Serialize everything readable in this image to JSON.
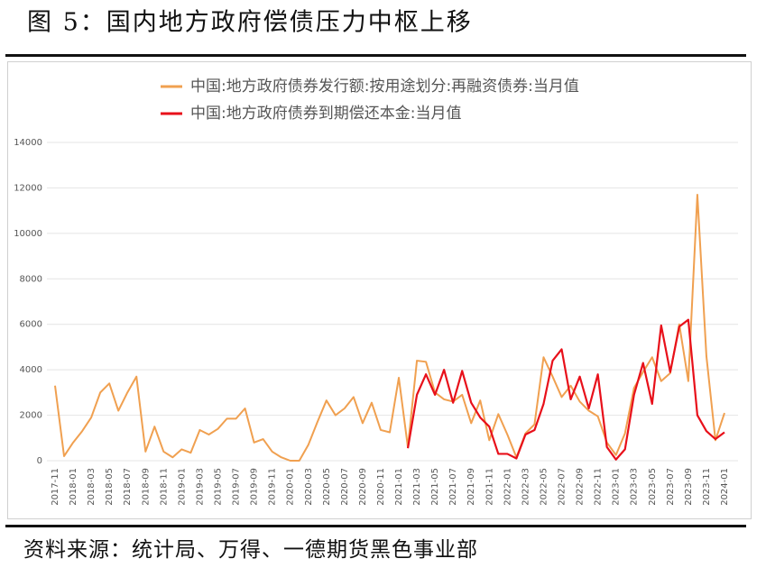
{
  "chart_data": {
    "type": "line",
    "title": "图 5：国内地方政府偿债压力中枢上移",
    "source": "资料来源：统计局、万得、一德期货黑色事业部",
    "categories": [
      "2017-11",
      null,
      "2018-01",
      null,
      "2018-03",
      null,
      "2018-05",
      null,
      "2018-07",
      null,
      "2018-09",
      null,
      "2018-11",
      null,
      "2019-01",
      null,
      "2019-03",
      null,
      "2019-05",
      null,
      "2019-07",
      null,
      "2019-09",
      null,
      "2019-11",
      null,
      "2020-01",
      null,
      "2020-03",
      null,
      "2020-05",
      null,
      "2020-07",
      null,
      "2020-09",
      null,
      "2020-11",
      null,
      "2021-01",
      null,
      "2021-03",
      null,
      "2021-05",
      null,
      "2021-07",
      null,
      "2021-09",
      null,
      "2021-11",
      null,
      "2022-01",
      null,
      "2022-03",
      null,
      "2022-05",
      null,
      "2022-07",
      null,
      "2022-09",
      null,
      "2022-11",
      null,
      "2023-01",
      null,
      "2023-03",
      null,
      "2023-05",
      null,
      "2023-07",
      null,
      "2023-09",
      null,
      "2023-11",
      null,
      "2024-01"
    ],
    "series": [
      {
        "name": "中国:地方政府债券发行额:按用途划分:再融资债券:当月值",
        "color": "#f0a050",
        "values": [
          3300,
          200,
          800,
          1300,
          1900,
          3000,
          3400,
          2200,
          3000,
          3700,
          400,
          1500,
          400,
          150,
          500,
          350,
          1350,
          1150,
          1400,
          1850,
          1850,
          2300,
          800,
          950,
          400,
          150,
          0,
          0,
          700,
          1700,
          2650,
          2000,
          2300,
          2800,
          1650,
          2550,
          1350,
          1250,
          3650,
          600,
          4400,
          4350,
          3000,
          2700,
          2600,
          2900,
          1650,
          2650,
          900,
          2050,
          1150,
          150,
          1200,
          1600,
          4550,
          3700,
          2800,
          3300,
          2600,
          2200,
          1950,
          800,
          250,
          1200,
          3200,
          3900,
          4550,
          3500,
          3850,
          6000,
          3500,
          11700,
          4600,
          900,
          2100
        ]
      },
      {
        "name": "中国:地方政府债券到期偿还本金:当月值",
        "color": "#e8101a",
        "values": [
          null,
          null,
          null,
          null,
          null,
          null,
          null,
          null,
          null,
          null,
          null,
          null,
          null,
          null,
          null,
          null,
          null,
          null,
          null,
          null,
          null,
          null,
          null,
          null,
          null,
          null,
          null,
          null,
          null,
          null,
          null,
          null,
          null,
          null,
          null,
          null,
          null,
          null,
          null,
          550,
          2900,
          3800,
          2900,
          4000,
          2550,
          3950,
          2550,
          1900,
          1500,
          300,
          300,
          100,
          1150,
          1350,
          2500,
          4400,
          4900,
          2700,
          3700,
          2300,
          3800,
          600,
          50,
          500,
          2900,
          4300,
          2500,
          5950,
          3900,
          5900,
          6200,
          2000,
          1300,
          950,
          1250
        ]
      }
    ],
    "ylim": [
      0,
      14000
    ],
    "yticks": [
      0,
      2000,
      4000,
      6000,
      8000,
      10000,
      12000,
      14000
    ],
    "grid": true,
    "legend": "top"
  }
}
